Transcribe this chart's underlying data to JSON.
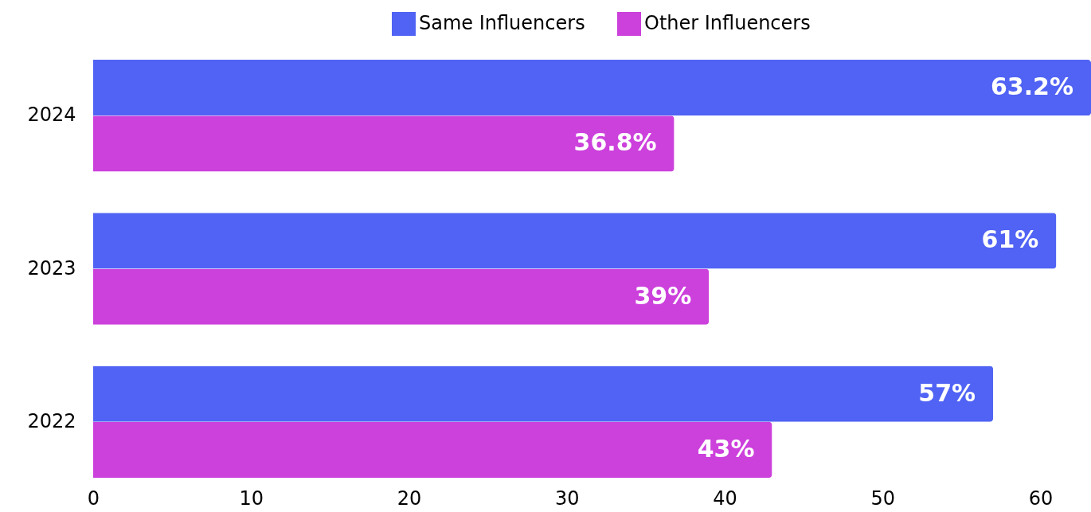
{
  "chart_data": {
    "type": "bar",
    "orientation": "horizontal",
    "categories": [
      "2024",
      "2023",
      "2022"
    ],
    "series": [
      {
        "name": "Same Influencers",
        "color": "#5063f4",
        "values": [
          63.2,
          61,
          57
        ],
        "value_labels": [
          "63.2%",
          "61%",
          "57%"
        ]
      },
      {
        "name": "Other Influencers",
        "color": "#cc40dc",
        "values": [
          36.8,
          39,
          43
        ],
        "value_labels": [
          "36.8%",
          "39%",
          "43%"
        ]
      }
    ],
    "xlim": [
      0,
      63.2
    ],
    "xticks": [
      0,
      10,
      20,
      30,
      40,
      50,
      60
    ],
    "legend": "top",
    "grid": false
  }
}
